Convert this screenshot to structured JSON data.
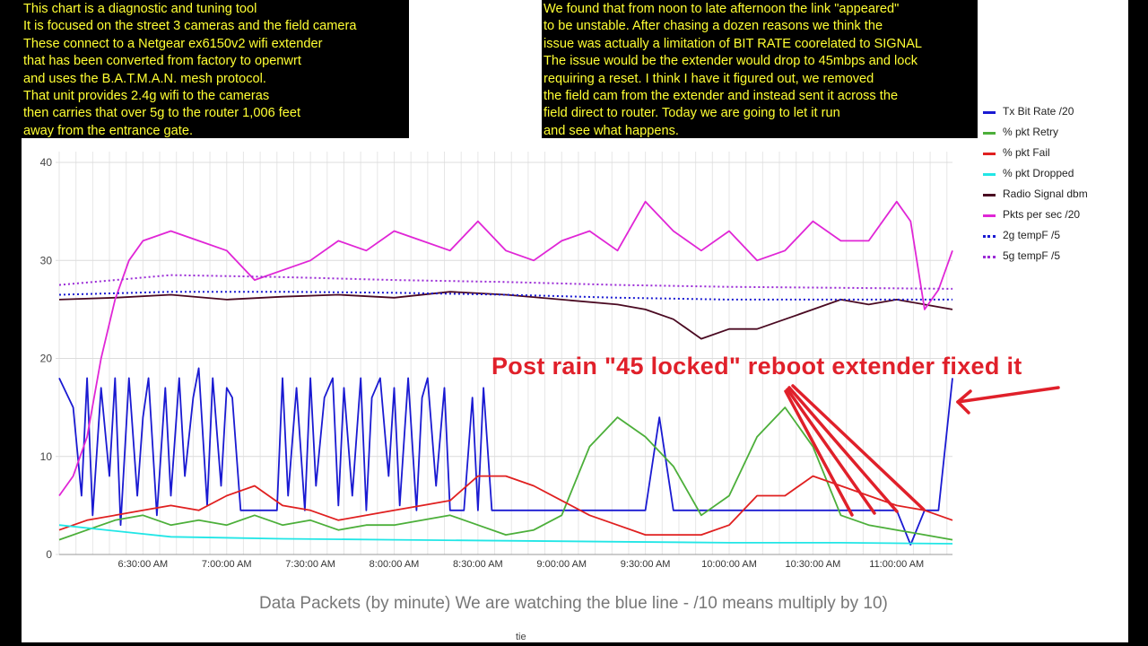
{
  "notes": {
    "left": [
      "This chart is a diagnostic and tuning tool",
      "It is focused on the street 3 cameras and the field camera",
      "These connect to a Netgear ex6150v2 wifi extender",
      "that has been converted from factory to openwrt",
      "and uses the B.A.T.M.A.N. mesh protocol.",
      "That unit provides 2.4g wifi to the cameras",
      "then carries that over 5g to the router 1,006 feet",
      "away from the entrance gate."
    ],
    "right": [
      "We found that from noon to late afternoon the link \"appeared\"",
      "to be unstable. After chasing a dozen reasons we think the",
      "issue was actually a limitation of BIT RATE coorelated to SIGNAL",
      "The issue would be the extender would drop to 45mbps and lock",
      "requiring a reset. I think I have it figured out, we removed",
      "the field cam from the extender and instead sent it across the",
      "field direct to router. Today we are going to let it run",
      "and see what happens."
    ]
  },
  "annotation": "Post rain \"45 locked\" reboot extender fixed it",
  "caption": "Data Packets  (by minute) We are watching the blue line -  /10 means multiply by 10)",
  "footer_word": "tie",
  "colors": {
    "annotation": "#e0202a",
    "grid": "#e6e6e6",
    "axis": "#999999"
  },
  "chart_data": {
    "type": "line",
    "title": "",
    "xlabel": "",
    "ylabel": "",
    "ylim": [
      0,
      40
    ],
    "xlim": [
      "6:00:00 AM",
      "11:20:00 AM"
    ],
    "grid": true,
    "legend_position": "right",
    "y_ticks": [
      0,
      10,
      20,
      30,
      40
    ],
    "x_ticks": [
      "6:30:00 AM",
      "7:00:00 AM",
      "7:30:00 AM",
      "8:00:00 AM",
      "8:30:00 AM",
      "9:00:00 AM",
      "9:30:00 AM",
      "10:00:00 AM",
      "10:30:00 AM",
      "11:00:00 AM"
    ],
    "x_unit": "minutes from 6:00:00 AM",
    "series": [
      {
        "name": "Tx Bit Rate /20",
        "color": "#1a1ad2",
        "style": "solid",
        "x": [
          0,
          5,
          8,
          10,
          12,
          15,
          18,
          20,
          22,
          25,
          28,
          30,
          32,
          35,
          38,
          40,
          43,
          45,
          48,
          50,
          53,
          55,
          58,
          60,
          62,
          65,
          68,
          70,
          72,
          75,
          78,
          80,
          82,
          85,
          88,
          90,
          92,
          95,
          98,
          100,
          102,
          105,
          108,
          110,
          112,
          115,
          118,
          120,
          122,
          125,
          128,
          130,
          132,
          135,
          138,
          140,
          142,
          145,
          148,
          150,
          152,
          155,
          158,
          160,
          165,
          170,
          175,
          180,
          185,
          190,
          195,
          200,
          205,
          210,
          215,
          220,
          225,
          230,
          235,
          240,
          245,
          250,
          255,
          260,
          265,
          270,
          275,
          280,
          285,
          290,
          295,
          300,
          305,
          310,
          315,
          320
        ],
        "values": [
          18,
          15,
          6,
          18,
          4,
          17,
          8,
          18,
          3,
          18,
          6,
          14,
          18,
          4,
          17,
          6,
          18,
          8,
          16,
          19,
          5,
          18,
          7,
          17,
          16,
          4.5,
          4.5,
          4.5,
          4.5,
          4.5,
          4.5,
          18,
          6,
          17,
          4.5,
          18,
          7,
          16,
          18,
          5,
          17,
          6,
          18,
          4.5,
          16,
          18,
          8,
          17,
          5,
          18,
          4.5,
          16,
          18,
          7,
          17,
          4.5,
          4.5,
          4.5,
          16,
          4.5,
          17,
          4.5,
          4.5,
          4.5,
          4.5,
          4.5,
          4.5,
          4.5,
          4.5,
          4.5,
          4.5,
          4.5,
          4.5,
          4.5,
          14,
          4.5,
          4.5,
          4.5,
          4.5,
          4.5,
          4.5,
          4.5,
          4.5,
          4.5,
          4.5,
          4.5,
          4.5,
          4.5,
          4.5,
          4.5,
          4.5,
          4.5,
          1,
          4.5,
          4.5,
          18
        ]
      },
      {
        "name": "% pkt Retry",
        "color": "#4caf3a",
        "style": "solid",
        "x": [
          0,
          10,
          20,
          30,
          40,
          50,
          60,
          70,
          80,
          90,
          100,
          110,
          120,
          130,
          140,
          150,
          160,
          170,
          180,
          190,
          200,
          210,
          220,
          230,
          240,
          250,
          260,
          270,
          280,
          290,
          300,
          310,
          320
        ],
        "values": [
          1.5,
          2.5,
          3.5,
          4,
          3,
          3.5,
          3,
          4,
          3,
          3.5,
          2.5,
          3,
          3,
          3.5,
          4,
          3,
          2,
          2.5,
          4,
          11,
          14,
          12,
          9,
          4,
          6,
          12,
          15,
          11,
          4,
          3,
          2.5,
          2,
          1.5
        ]
      },
      {
        "name": "% pkt Fail",
        "color": "#e02020",
        "style": "solid",
        "x": [
          0,
          10,
          20,
          30,
          40,
          50,
          60,
          70,
          80,
          90,
          100,
          110,
          120,
          130,
          140,
          150,
          160,
          170,
          180,
          190,
          200,
          210,
          220,
          230,
          240,
          250,
          260,
          270,
          280,
          290,
          300,
          310,
          320
        ],
        "values": [
          2.5,
          3.5,
          4,
          4.5,
          5,
          4.5,
          6,
          7,
          5,
          4.5,
          3.5,
          4,
          4.5,
          5,
          5.5,
          8,
          8,
          7,
          5.5,
          4,
          3,
          2,
          2,
          2,
          3,
          6,
          6,
          8,
          7,
          6,
          5,
          4.5,
          3.5
        ]
      },
      {
        "name": "% pkt Dropped",
        "color": "#22e6e6",
        "style": "solid",
        "x": [
          0,
          40,
          80,
          120,
          160,
          200,
          240,
          280,
          320
        ],
        "values": [
          3,
          1.8,
          1.6,
          1.5,
          1.4,
          1.3,
          1.2,
          1.2,
          1.1
        ]
      },
      {
        "name": "Radio Signal dbm",
        "color": "#4a0a22",
        "style": "solid",
        "x": [
          0,
          20,
          40,
          60,
          80,
          100,
          120,
          140,
          160,
          180,
          200,
          210,
          220,
          230,
          240,
          250,
          260,
          270,
          280,
          290,
          300,
          310,
          320
        ],
        "values": [
          26,
          26.2,
          26.5,
          26,
          26.3,
          26.5,
          26.2,
          26.8,
          26.5,
          26,
          25.5,
          25,
          24,
          22,
          23,
          23,
          24,
          25,
          26,
          25.5,
          26,
          25.5,
          25
        ]
      },
      {
        "name": "Pkts per sec /20",
        "color": "#e026d6",
        "style": "solid",
        "x": [
          0,
          5,
          10,
          15,
          20,
          25,
          30,
          40,
          50,
          60,
          70,
          80,
          90,
          100,
          110,
          120,
          130,
          140,
          150,
          160,
          170,
          180,
          190,
          200,
          210,
          220,
          230,
          240,
          250,
          260,
          270,
          280,
          290,
          300,
          305,
          310,
          315,
          320
        ],
        "values": [
          6,
          8,
          12,
          20,
          26,
          30,
          32,
          33,
          32,
          31,
          28,
          29,
          30,
          32,
          31,
          33,
          32,
          31,
          34,
          31,
          30,
          32,
          33,
          31,
          36,
          33,
          31,
          33,
          30,
          31,
          34,
          32,
          32,
          36,
          34,
          25,
          27,
          31
        ]
      },
      {
        "name": "2g tempF /5",
        "color": "#1a1ad2",
        "style": "dotted",
        "x": [
          0,
          40,
          80,
          120,
          160,
          200,
          240,
          280,
          320
        ],
        "values": [
          26.5,
          26.8,
          26.8,
          26.7,
          26.5,
          26.2,
          26,
          26,
          26
        ]
      },
      {
        "name": "5g tempF /5",
        "color": "#9a2ad6",
        "style": "dotted",
        "x": [
          0,
          40,
          80,
          120,
          160,
          200,
          240,
          280,
          320
        ],
        "values": [
          27.5,
          28.5,
          28.3,
          28,
          27.8,
          27.5,
          27.3,
          27.2,
          27.1
        ]
      }
    ]
  }
}
